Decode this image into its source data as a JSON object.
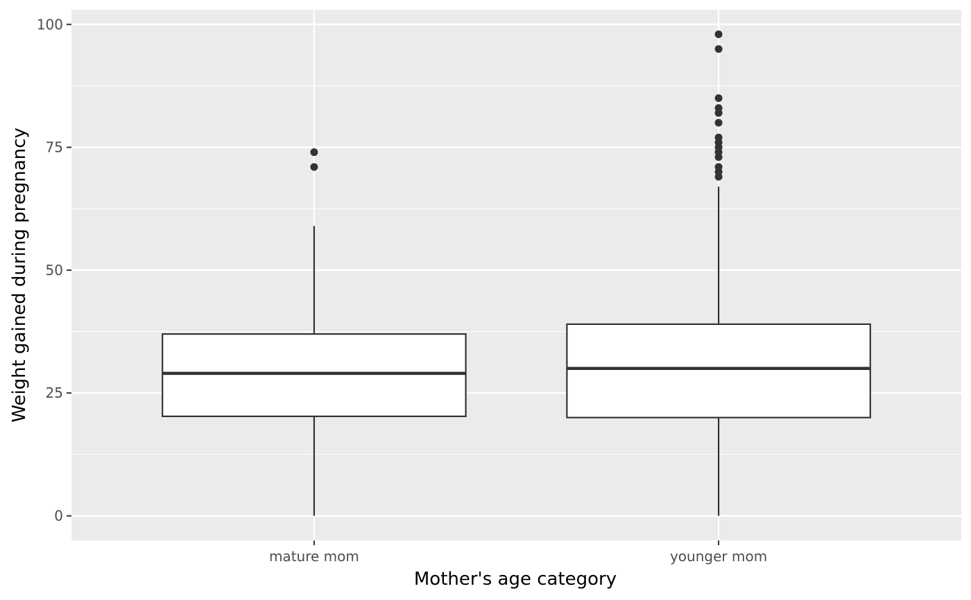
{
  "chart_data": {
    "type": "boxplot",
    "xlabel": "Mother's age category",
    "ylabel": "Weight gained during pregnancy",
    "categories": [
      "mature mom",
      "younger mom"
    ],
    "ylim": [
      -5,
      103
    ],
    "yticks": [
      0,
      25,
      50,
      75,
      100
    ],
    "grid": true,
    "legend": "none",
    "boxes": [
      {
        "category": "mature mom",
        "whisker_low": 0,
        "q1": 20.25,
        "median": 29,
        "q3": 37,
        "whisker_high": 59,
        "outliers": [
          71,
          74
        ]
      },
      {
        "category": "younger mom",
        "whisker_low": 0,
        "q1": 20,
        "median": 30,
        "q3": 39,
        "whisker_high": 67,
        "outliers": [
          69,
          70,
          71,
          73,
          74,
          75,
          76,
          77,
          80,
          82,
          83,
          85,
          95,
          98
        ]
      }
    ],
    "colors": {
      "panel": "#ebebeb",
      "grid": "#ffffff",
      "box_fill": "#ffffff",
      "box_line": "#333333",
      "outlier": "#333333",
      "tick": "#333333"
    }
  }
}
